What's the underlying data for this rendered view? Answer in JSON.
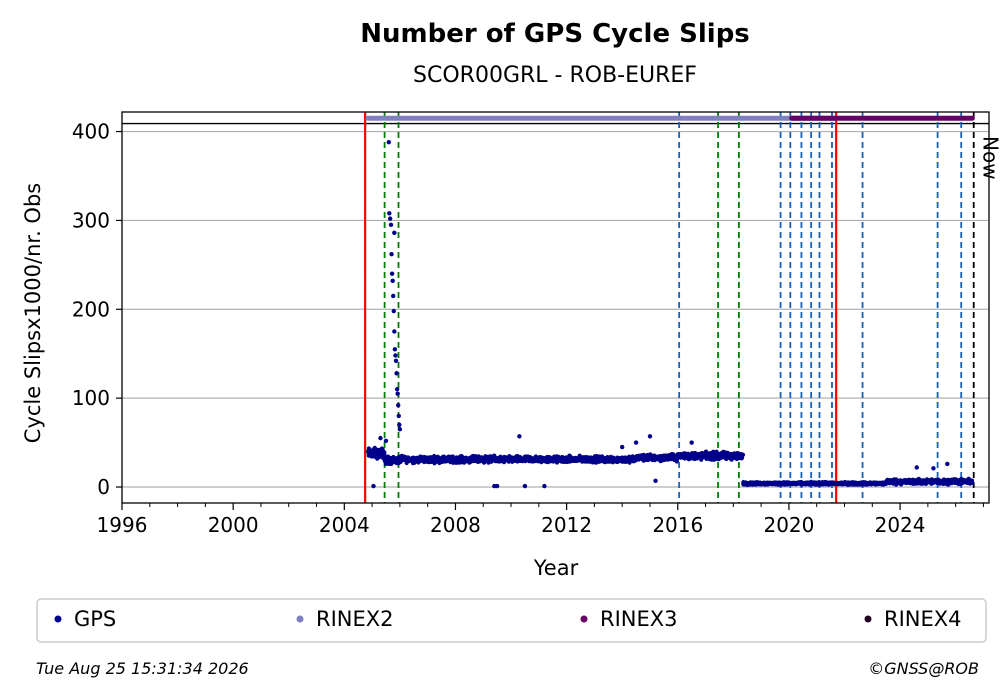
{
  "footer": {
    "timestamp": "Tue Aug 25 15:31:34 2026",
    "credit": "©GNSS@ROB"
  },
  "colors": {
    "gps": "#00008b",
    "rinex2": "#8080c0",
    "rinex3": "#660066",
    "rinex4": "#220022",
    "event_blue": "#1560bd",
    "event_green": "#008000",
    "event_red": "#ff0000",
    "now": "#000000"
  },
  "chart_data": {
    "type": "scatter",
    "title": "Number of GPS Cycle Slips",
    "subtitle": "SCOR00GRL - ROB-EUREF",
    "xlabel": "Year",
    "ylabel": "Cycle Slipsx1000/nr. Obs",
    "xlim": [
      1996,
      2027.2
    ],
    "ylim": [
      -18,
      422
    ],
    "x_ticks": [
      1996,
      2000,
      2004,
      2008,
      2012,
      2016,
      2020,
      2024
    ],
    "y_ticks": [
      0,
      100,
      200,
      300,
      400
    ],
    "grid": "horizontal",
    "legend": [
      "GPS",
      "RINEX2",
      "RINEX3",
      "RINEX4"
    ],
    "legend_position": "bottom",
    "now_label": "Now",
    "now_x": 2026.65,
    "reference_line_y": 409,
    "segments": [
      {
        "name": "GPS",
        "x_start": 2004.85,
        "x_end": 2005.45,
        "mean": 38,
        "spread": 8
      },
      {
        "name": "GPS",
        "x_start": 2005.45,
        "x_end": 2005.95,
        "mean": 30,
        "spread": 6
      },
      {
        "name": "GPS",
        "x_start": 2005.95,
        "x_end": 2009.5,
        "mean": 31,
        "spread": 5
      },
      {
        "name": "GPS",
        "x_start": 2009.5,
        "x_end": 2014.5,
        "mean": 31,
        "spread": 5
      },
      {
        "name": "GPS",
        "x_start": 2014.5,
        "x_end": 2016.0,
        "mean": 33,
        "spread": 5
      },
      {
        "name": "GPS",
        "x_start": 2016.0,
        "x_end": 2018.35,
        "mean": 35,
        "spread": 6
      },
      {
        "name": "GPS",
        "x_start": 2018.35,
        "x_end": 2023.5,
        "mean": 4,
        "spread": 2
      },
      {
        "name": "GPS",
        "x_start": 2023.5,
        "x_end": 2026.6,
        "mean": 6,
        "spread": 4
      }
    ],
    "spikes": [
      {
        "x": 2005.05,
        "y": 1
      },
      {
        "x": 2005.3,
        "y": 55
      },
      {
        "x": 2005.5,
        "y": 52
      },
      {
        "x": 2005.6,
        "y": 388
      },
      {
        "x": 2005.62,
        "y": 308
      },
      {
        "x": 2005.65,
        "y": 302
      },
      {
        "x": 2005.68,
        "y": 295
      },
      {
        "x": 2005.7,
        "y": 262
      },
      {
        "x": 2005.72,
        "y": 240
      },
      {
        "x": 2005.74,
        "y": 232
      },
      {
        "x": 2005.76,
        "y": 215
      },
      {
        "x": 2005.78,
        "y": 198
      },
      {
        "x": 2005.8,
        "y": 175
      },
      {
        "x": 2005.82,
        "y": 155
      },
      {
        "x": 2005.84,
        "y": 148
      },
      {
        "x": 2005.86,
        "y": 142
      },
      {
        "x": 2005.88,
        "y": 128
      },
      {
        "x": 2005.9,
        "y": 110
      },
      {
        "x": 2005.92,
        "y": 105
      },
      {
        "x": 2005.94,
        "y": 92
      },
      {
        "x": 2005.96,
        "y": 80
      },
      {
        "x": 2005.98,
        "y": 70
      },
      {
        "x": 2006.0,
        "y": 65
      },
      {
        "x": 2005.8,
        "y": 286
      },
      {
        "x": 2009.4,
        "y": 1
      },
      {
        "x": 2009.5,
        "y": 1
      },
      {
        "x": 2010.3,
        "y": 57
      },
      {
        "x": 2010.5,
        "y": 1
      },
      {
        "x": 2011.2,
        "y": 1
      },
      {
        "x": 2014.0,
        "y": 45
      },
      {
        "x": 2014.5,
        "y": 50
      },
      {
        "x": 2015.0,
        "y": 57
      },
      {
        "x": 2015.2,
        "y": 7
      },
      {
        "x": 2016.5,
        "y": 50
      },
      {
        "x": 2024.6,
        "y": 22
      },
      {
        "x": 2025.2,
        "y": 21
      },
      {
        "x": 2025.7,
        "y": 26
      }
    ],
    "rinex_bars": [
      {
        "name": "RINEX2",
        "x_start": 2004.85,
        "x_end": 2021.7,
        "y": 415
      },
      {
        "name": "RINEX3",
        "x_start": 2020.1,
        "x_end": 2026.6,
        "y": 415
      }
    ],
    "event_lines": [
      {
        "x": 2004.75,
        "color": "green",
        "style": "dashed"
      },
      {
        "x": 2004.75,
        "color": "red",
        "style": "solid"
      },
      {
        "x": 2005.45,
        "color": "green",
        "style": "dashed"
      },
      {
        "x": 2005.95,
        "color": "green",
        "style": "dashed"
      },
      {
        "x": 2016.05,
        "color": "blue",
        "style": "dashed"
      },
      {
        "x": 2017.45,
        "color": "green",
        "style": "dashed"
      },
      {
        "x": 2018.2,
        "color": "green",
        "style": "dashed"
      },
      {
        "x": 2019.7,
        "color": "blue",
        "style": "dashed"
      },
      {
        "x": 2020.05,
        "color": "blue",
        "style": "dashed"
      },
      {
        "x": 2020.45,
        "color": "blue",
        "style": "dashed"
      },
      {
        "x": 2020.8,
        "color": "blue",
        "style": "dashed"
      },
      {
        "x": 2021.1,
        "color": "blue",
        "style": "dashed"
      },
      {
        "x": 2021.55,
        "color": "blue",
        "style": "dashed"
      },
      {
        "x": 2021.7,
        "color": "red",
        "style": "solid"
      },
      {
        "x": 2022.65,
        "color": "blue",
        "style": "dashed"
      },
      {
        "x": 2025.35,
        "color": "blue",
        "style": "dashed"
      },
      {
        "x": 2026.2,
        "color": "blue",
        "style": "dashed"
      },
      {
        "x": 2026.65,
        "color": "black",
        "style": "dashed"
      }
    ]
  }
}
